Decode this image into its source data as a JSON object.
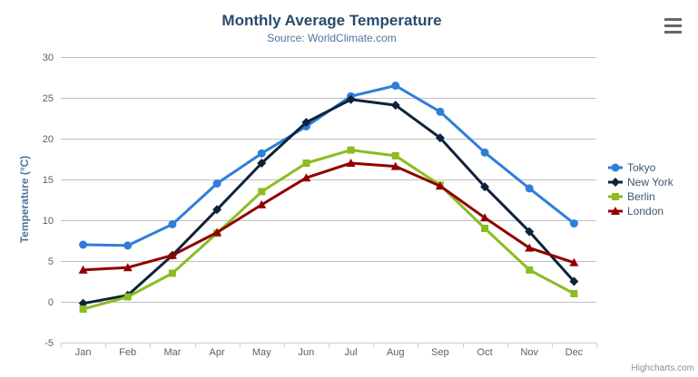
{
  "chart_data": {
    "type": "line",
    "title": "Monthly Average Temperature",
    "subtitle": "Source: WorldClimate.com",
    "xlabel": "",
    "ylabel": "Temperature (°C)",
    "categories": [
      "Jan",
      "Feb",
      "Mar",
      "Apr",
      "May",
      "Jun",
      "Jul",
      "Aug",
      "Sep",
      "Oct",
      "Nov",
      "Dec"
    ],
    "series": [
      {
        "name": "Tokyo",
        "marker": "circle",
        "color": "#2f7ed8",
        "values": [
          7.0,
          6.9,
          9.5,
          14.5,
          18.2,
          21.5,
          25.2,
          26.5,
          23.3,
          18.3,
          13.9,
          9.6
        ]
      },
      {
        "name": "New York",
        "marker": "diamond",
        "color": "#0d233a",
        "values": [
          -0.2,
          0.8,
          5.7,
          11.3,
          17.0,
          22.0,
          24.8,
          24.1,
          20.1,
          14.1,
          8.6,
          2.5
        ]
      },
      {
        "name": "Berlin",
        "marker": "square",
        "color": "#8bbc21",
        "values": [
          -0.9,
          0.6,
          3.5,
          8.4,
          13.5,
          17.0,
          18.6,
          17.9,
          14.3,
          9.0,
          3.9,
          1.0
        ]
      },
      {
        "name": "London",
        "marker": "triangle",
        "color": "#910000",
        "values": [
          3.9,
          4.2,
          5.7,
          8.5,
          11.9,
          15.2,
          17.0,
          16.6,
          14.2,
          10.3,
          6.6,
          4.8
        ]
      }
    ],
    "ylim": [
      -5,
      30
    ],
    "ytick_step": 5,
    "grid": true,
    "legend_position": "right"
  },
  "credits": {
    "label": "Highcharts.com"
  },
  "export_menu": {
    "icon": "hamburger-icon"
  },
  "colors": {
    "title": "#274b6d",
    "subtitle": "#4d759e",
    "axis_labels": "#606060",
    "axis_line": "#C0D0E0",
    "gridline": "#C0C0C0",
    "legend_text": "#3E576F",
    "credits_text": "#909090",
    "background": "#ffffff"
  }
}
